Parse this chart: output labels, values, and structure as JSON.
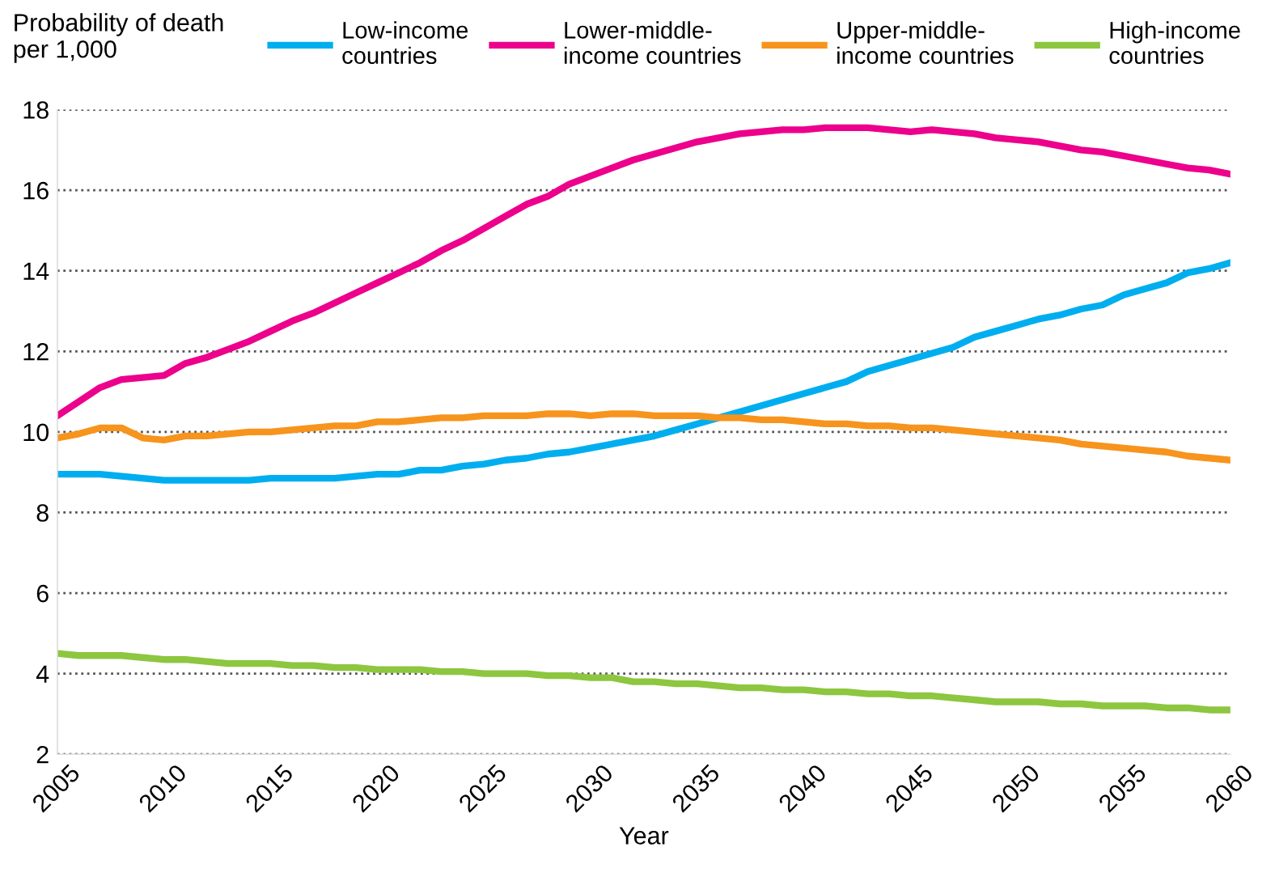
{
  "chart_data": {
    "type": "line",
    "ylabel": "Probability of death\nper 1,000",
    "xlabel": "Year",
    "x": [
      2005,
      2006,
      2007,
      2008,
      2009,
      2010,
      2011,
      2012,
      2013,
      2014,
      2015,
      2016,
      2017,
      2018,
      2019,
      2020,
      2021,
      2022,
      2023,
      2024,
      2025,
      2026,
      2027,
      2028,
      2029,
      2030,
      2031,
      2032,
      2033,
      2034,
      2035,
      2036,
      2037,
      2038,
      2039,
      2040,
      2041,
      2042,
      2043,
      2044,
      2045,
      2046,
      2047,
      2048,
      2049,
      2050,
      2051,
      2052,
      2053,
      2054,
      2055,
      2056,
      2057,
      2058,
      2059,
      2060
    ],
    "series": [
      {
        "name": "Low-income\ncountries",
        "color": "#00aeef",
        "values": [
          8.95,
          8.95,
          8.95,
          8.9,
          8.85,
          8.8,
          8.8,
          8.8,
          8.8,
          8.8,
          8.85,
          8.85,
          8.85,
          8.85,
          8.9,
          8.95,
          8.95,
          9.05,
          9.05,
          9.15,
          9.2,
          9.3,
          9.35,
          9.45,
          9.5,
          9.6,
          9.7,
          9.8,
          9.9,
          10.05,
          10.2,
          10.35,
          10.5,
          10.65,
          10.8,
          10.95,
          11.1,
          11.25,
          11.5,
          11.65,
          11.8,
          11.95,
          12.1,
          12.35,
          12.5,
          12.65,
          12.8,
          12.9,
          13.05,
          13.15,
          13.4,
          13.55,
          13.7,
          13.95,
          14.05,
          14.2
        ]
      },
      {
        "name": "Lower-middle-\nincome countries",
        "color": "#ec008c",
        "values": [
          10.4,
          10.75,
          11.1,
          11.3,
          11.35,
          11.4,
          11.7,
          11.85,
          12.05,
          12.25,
          12.5,
          12.75,
          12.95,
          13.2,
          13.45,
          13.7,
          13.95,
          14.2,
          14.5,
          14.75,
          15.05,
          15.35,
          15.65,
          15.85,
          16.15,
          16.35,
          16.55,
          16.75,
          16.9,
          17.05,
          17.2,
          17.3,
          17.4,
          17.45,
          17.5,
          17.5,
          17.55,
          17.55,
          17.55,
          17.5,
          17.45,
          17.5,
          17.45,
          17.4,
          17.3,
          17.25,
          17.2,
          17.1,
          17.0,
          16.95,
          16.85,
          16.75,
          16.65,
          16.55,
          16.5,
          16.4
        ]
      },
      {
        "name": "Upper-middle-\nincome countries",
        "color": "#f7941d",
        "values": [
          9.85,
          9.95,
          10.1,
          10.1,
          9.85,
          9.8,
          9.9,
          9.9,
          9.95,
          10.0,
          10.0,
          10.05,
          10.1,
          10.15,
          10.15,
          10.25,
          10.25,
          10.3,
          10.35,
          10.35,
          10.4,
          10.4,
          10.4,
          10.45,
          10.45,
          10.4,
          10.45,
          10.45,
          10.4,
          10.4,
          10.4,
          10.35,
          10.35,
          10.3,
          10.3,
          10.25,
          10.2,
          10.2,
          10.15,
          10.15,
          10.1,
          10.1,
          10.05,
          10.0,
          9.95,
          9.9,
          9.85,
          9.8,
          9.7,
          9.65,
          9.6,
          9.55,
          9.5,
          9.4,
          9.35,
          9.3
        ]
      },
      {
        "name": "High-income\ncountries",
        "color": "#8dc63f",
        "values": [
          4.5,
          4.45,
          4.45,
          4.45,
          4.4,
          4.35,
          4.35,
          4.3,
          4.25,
          4.25,
          4.25,
          4.2,
          4.2,
          4.15,
          4.15,
          4.1,
          4.1,
          4.1,
          4.05,
          4.05,
          4.0,
          4.0,
          4.0,
          3.95,
          3.95,
          3.9,
          3.9,
          3.8,
          3.8,
          3.75,
          3.75,
          3.7,
          3.65,
          3.65,
          3.6,
          3.6,
          3.55,
          3.55,
          3.5,
          3.5,
          3.45,
          3.45,
          3.4,
          3.35,
          3.3,
          3.3,
          3.3,
          3.25,
          3.25,
          3.2,
          3.2,
          3.2,
          3.15,
          3.15,
          3.1,
          3.1
        ]
      }
    ],
    "xlim": [
      2005,
      2060
    ],
    "xticks": [
      2005,
      2010,
      2015,
      2020,
      2025,
      2030,
      2035,
      2040,
      2045,
      2050,
      2055,
      2060
    ],
    "ylim": [
      2,
      18
    ],
    "yticks": [
      2,
      4,
      6,
      8,
      10,
      12,
      14,
      16,
      18
    ],
    "grid": "y",
    "legend": "top",
    "marker": "none",
    "line_style": "solid"
  }
}
